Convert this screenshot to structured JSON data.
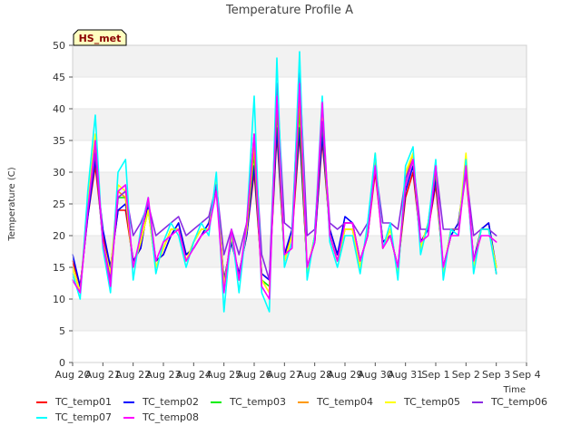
{
  "chart_data": {
    "type": "line",
    "title": "Temperature Profile A",
    "xlabel": "Time",
    "ylabel": "Temperature (C)",
    "ylim": [
      0,
      50
    ],
    "xlim": [
      "Aug 20",
      "Sep 4"
    ],
    "yticks": [
      0,
      5,
      10,
      15,
      20,
      25,
      30,
      35,
      40,
      45,
      50
    ],
    "xticks": [
      "Aug 20",
      "Aug 21",
      "Aug 22",
      "Aug 23",
      "Aug 24",
      "Aug 25",
      "Aug 26",
      "Aug 27",
      "Aug 28",
      "Aug 29",
      "Aug 30",
      "Aug 31",
      "Sep 1",
      "Sep 2",
      "Sep 3",
      "Sep 4"
    ],
    "grid": "horizontal bands",
    "legend_position": "bottom",
    "badge": "HS_met",
    "x_days": [
      0.0,
      0.25,
      0.5,
      0.75,
      1.0,
      1.25,
      1.5,
      1.75,
      2.0,
      2.25,
      2.5,
      2.75,
      3.0,
      3.25,
      3.5,
      3.75,
      4.0,
      4.25,
      4.5,
      4.75,
      5.0,
      5.25,
      5.5,
      5.75,
      6.0,
      6.25,
      6.5,
      6.75,
      7.0,
      7.25,
      7.5,
      7.75,
      8.0,
      8.25,
      8.5,
      8.75,
      9.0,
      9.25,
      9.5,
      9.75,
      10.0,
      10.25,
      10.5,
      10.75,
      11.0,
      11.25,
      11.5,
      11.75,
      12.0,
      12.25,
      12.5,
      12.75,
      13.0,
      13.25,
      13.5,
      13.75,
      14.0
    ],
    "series": [
      {
        "name": "TC_temp01",
        "color": "#ff0000",
        "values": [
          16,
          12,
          23,
          31,
          20,
          15,
          24,
          24,
          16,
          18,
          25,
          16,
          17,
          20,
          22,
          17,
          18,
          20,
          22,
          27,
          13,
          19,
          14,
          20,
          30,
          14,
          13,
          36,
          17,
          20,
          36,
          15,
          19,
          35,
          21,
          17,
          22,
          22,
          16,
          20,
          30,
          19,
          20,
          15,
          26,
          30,
          19,
          21,
          28,
          15,
          20,
          22,
          30,
          16,
          21,
          22,
          14
        ]
      },
      {
        "name": "TC_temp02",
        "color": "#0000ff",
        "values": [
          17,
          12,
          23,
          32,
          21,
          15,
          24,
          25,
          16,
          18,
          25,
          16,
          17,
          20,
          22,
          17,
          18,
          20,
          22,
          28,
          13,
          19,
          14,
          20,
          31,
          14,
          13,
          37,
          17,
          21,
          37,
          15,
          19,
          36,
          21,
          17,
          23,
          22,
          16,
          20,
          31,
          19,
          20,
          15,
          27,
          31,
          19,
          21,
          29,
          15,
          20,
          22,
          31,
          16,
          21,
          22,
          15
        ]
      },
      {
        "name": "TC_temp03",
        "color": "#00ee00",
        "values": [
          15,
          11,
          25,
          33,
          19,
          14,
          26,
          26,
          15,
          19,
          24,
          15,
          18,
          21,
          21,
          16,
          19,
          21,
          21,
          29,
          12,
          20,
          13,
          21,
          33,
          13,
          12,
          40,
          16,
          20,
          40,
          14,
          20,
          38,
          20,
          16,
          21,
          21,
          15,
          21,
          32,
          18,
          21,
          14,
          28,
          32,
          18,
          22,
          30,
          14,
          21,
          21,
          32,
          15,
          21,
          21,
          15
        ]
      },
      {
        "name": "TC_temp04",
        "color": "#ff9900",
        "values": [
          15,
          11,
          25,
          34,
          19,
          14,
          27,
          26,
          15,
          19,
          24,
          15,
          18,
          21,
          21,
          16,
          19,
          21,
          21,
          29,
          12,
          20,
          13,
          21,
          34,
          13,
          11,
          42,
          16,
          20,
          42,
          14,
          20,
          39,
          20,
          16,
          21,
          21,
          15,
          21,
          32,
          18,
          21,
          14,
          29,
          33,
          18,
          22,
          31,
          14,
          21,
          21,
          32,
          15,
          21,
          21,
          15
        ]
      },
      {
        "name": "TC_temp05",
        "color": "#ffff00",
        "values": [
          15,
          11,
          26,
          36,
          19,
          14,
          28,
          27,
          15,
          19,
          24,
          15,
          18,
          21,
          21,
          16,
          19,
          21,
          21,
          29,
          12,
          20,
          13,
          21,
          36,
          13,
          11,
          44,
          16,
          20,
          45,
          14,
          20,
          40,
          20,
          16,
          21,
          21,
          15,
          21,
          33,
          18,
          21,
          14,
          30,
          33,
          18,
          22,
          31,
          14,
          21,
          21,
          33,
          15,
          21,
          21,
          15
        ]
      },
      {
        "name": "TC_temp06",
        "color": "#8a2be2",
        "values": [
          13,
          11,
          24,
          33,
          19,
          13,
          26,
          27,
          20,
          22,
          25,
          20,
          21,
          22,
          23,
          20,
          21,
          22,
          23,
          28,
          17,
          21,
          17,
          22,
          36,
          17,
          13,
          44,
          22,
          21,
          46,
          20,
          21,
          38,
          22,
          21,
          22,
          22,
          20,
          22,
          31,
          22,
          22,
          21,
          29,
          32,
          21,
          21,
          31,
          21,
          21,
          21,
          30,
          20,
          21,
          21,
          20
        ]
      },
      {
        "name": "TC_temp07",
        "color": "#00ffff",
        "values": [
          14,
          10,
          27,
          39,
          18,
          11,
          30,
          32,
          13,
          21,
          26,
          14,
          19,
          22,
          20,
          15,
          19,
          22,
          20,
          30,
          8,
          21,
          11,
          22,
          42,
          11,
          8,
          48,
          15,
          19,
          49,
          13,
          20,
          42,
          19,
          15,
          20,
          20,
          14,
          22,
          33,
          18,
          22,
          13,
          31,
          34,
          17,
          22,
          32,
          13,
          21,
          20,
          32,
          14,
          21,
          21,
          14
        ]
      },
      {
        "name": "TC_temp08",
        "color": "#ff00ff",
        "values": [
          13,
          11,
          24,
          35,
          19,
          12,
          27,
          28,
          15,
          20,
          26,
          16,
          19,
          20,
          21,
          16,
          18,
          20,
          21,
          27,
          11,
          21,
          13,
          22,
          36,
          12,
          10,
          42,
          17,
          18,
          44,
          15,
          19,
          41,
          20,
          16,
          22,
          22,
          16,
          20,
          31,
          18,
          20,
          15,
          28,
          32,
          19,
          20,
          31,
          15,
          20,
          20,
          31,
          16,
          20,
          20,
          19
        ]
      }
    ]
  }
}
